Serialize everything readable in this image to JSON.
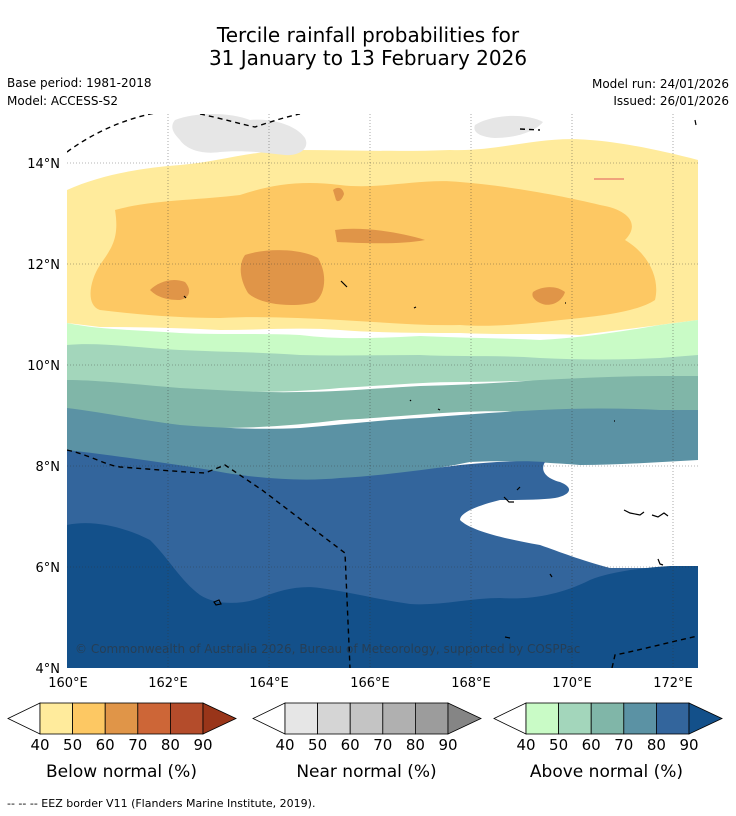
{
  "title": {
    "line1": "Tercile rainfall probabilities for",
    "line2": "31 January to 13 February 2026"
  },
  "meta": {
    "base_period": "Base period: 1981-2018",
    "model": "Model: ACCESS-S2",
    "model_run": "Model run: 24/01/2026",
    "issued": "Issued: 26/01/2026"
  },
  "map": {
    "lat_ticks": [
      "14°N",
      "12°N",
      "10°N",
      "8°N",
      "6°N",
      "4°N"
    ],
    "lon_ticks": [
      "160°E",
      "162°E",
      "164°E",
      "166°E",
      "168°E",
      "170°E",
      "172°E"
    ],
    "copyright": "© Commonwealth of Australia 2026, Bureau of Meteorology, supported by COSPPac"
  },
  "legends": [
    {
      "label": "Below normal (%)",
      "ticks": [
        "40",
        "50",
        "60",
        "70",
        "80",
        "90"
      ],
      "colors": [
        "#ffeb9c",
        "#fdc863",
        "#e09548",
        "#cd6637",
        "#b44c2b",
        "#993519"
      ]
    },
    {
      "label": "Near normal (%)",
      "ticks": [
        "40",
        "50",
        "60",
        "70",
        "80",
        "90"
      ],
      "colors": [
        "#e6e6e6",
        "#d5d5d5",
        "#c4c4c4",
        "#b0b0b0",
        "#9c9c9c",
        "#858585"
      ]
    },
    {
      "label": "Above normal (%)",
      "ticks": [
        "40",
        "50",
        "60",
        "70",
        "80",
        "90"
      ],
      "colors": [
        "#c9fbc6",
        "#a3d6bb",
        "#80b6a8",
        "#5b92a4",
        "#33659c",
        "#13508a"
      ]
    }
  ],
  "footer": "-- -- -- EEZ border V11 (Flanders Marine Institute, 2019)."
}
